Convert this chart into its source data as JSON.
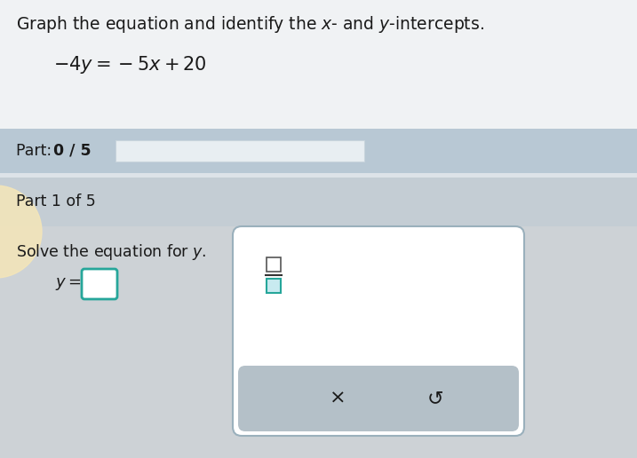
{
  "bg_top": "#f0f2f4",
  "bg_part_bar": "#b8c8d4",
  "bg_part1": "#c4cdd4",
  "bg_lower": "#cdd2d6",
  "progress_bar_color": "#dce8f0",
  "title_line1": "Graph the equation and identify the $x$- and $y$-intercepts.",
  "equation": "$-4y=-5x+20$",
  "part_label_plain": "Part: ",
  "part_label_bold": "0 / 5",
  "part1_label": "Part 1 of 5",
  "solve_text": "Solve the equation for $y$.",
  "y_label": "$y=$",
  "input_border_color": "#26a69a",
  "popup_border_color": "#9ab0bc",
  "action_bar_color": "#b4c0c8",
  "frac_top_border": "#555555",
  "frac_bot_border": "#26a69a",
  "frac_line_color": "#333333",
  "x_btn": "×",
  "undo_btn": "↺",
  "text_color": "#1a1a1a",
  "circle_color": "#f5e6b8"
}
